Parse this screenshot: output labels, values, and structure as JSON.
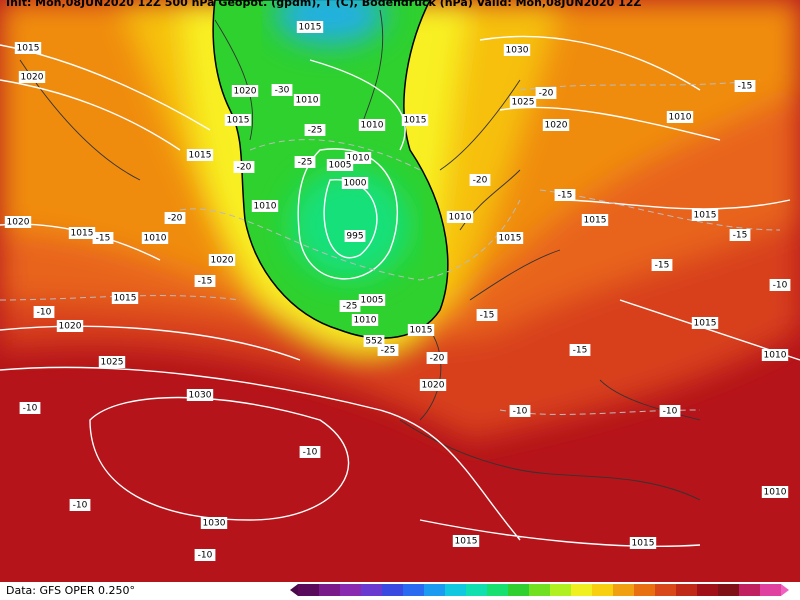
{
  "header": {
    "text": "Init: Mon,08JUN2020 12Z   500 hPa Geopot. (gpdm), T (C), Bodendruck (hPa)   Valid: Mon,08JUN2020 12Z"
  },
  "footer": {
    "source": "Data: GFS OPER 0.250°"
  },
  "isobar_labels": [
    1015,
    1015,
    1020,
    1020,
    1010,
    1015,
    1010,
    1015,
    1030,
    1025,
    1020,
    1010,
    1015,
    1010,
    1005,
    1000,
    1010,
    995,
    1010,
    1015,
    1015,
    1015,
    1020,
    1015,
    1010,
    1020,
    1015,
    1020,
    1005,
    1010,
    1015,
    1015,
    1010,
    1025,
    1020,
    1030,
    1030,
    1015,
    1015,
    1010
  ],
  "temperature_labels": [
    -30,
    -25,
    -25,
    -20,
    -20,
    -15,
    -15,
    -20,
    -20,
    -15,
    -15,
    -10,
    -25,
    -25,
    -20,
    -15,
    -15,
    -15,
    -10,
    -15,
    -10,
    -10,
    -10,
    -10,
    -10,
    -10
  ],
  "geopotential_labels": [
    552
  ]
}
